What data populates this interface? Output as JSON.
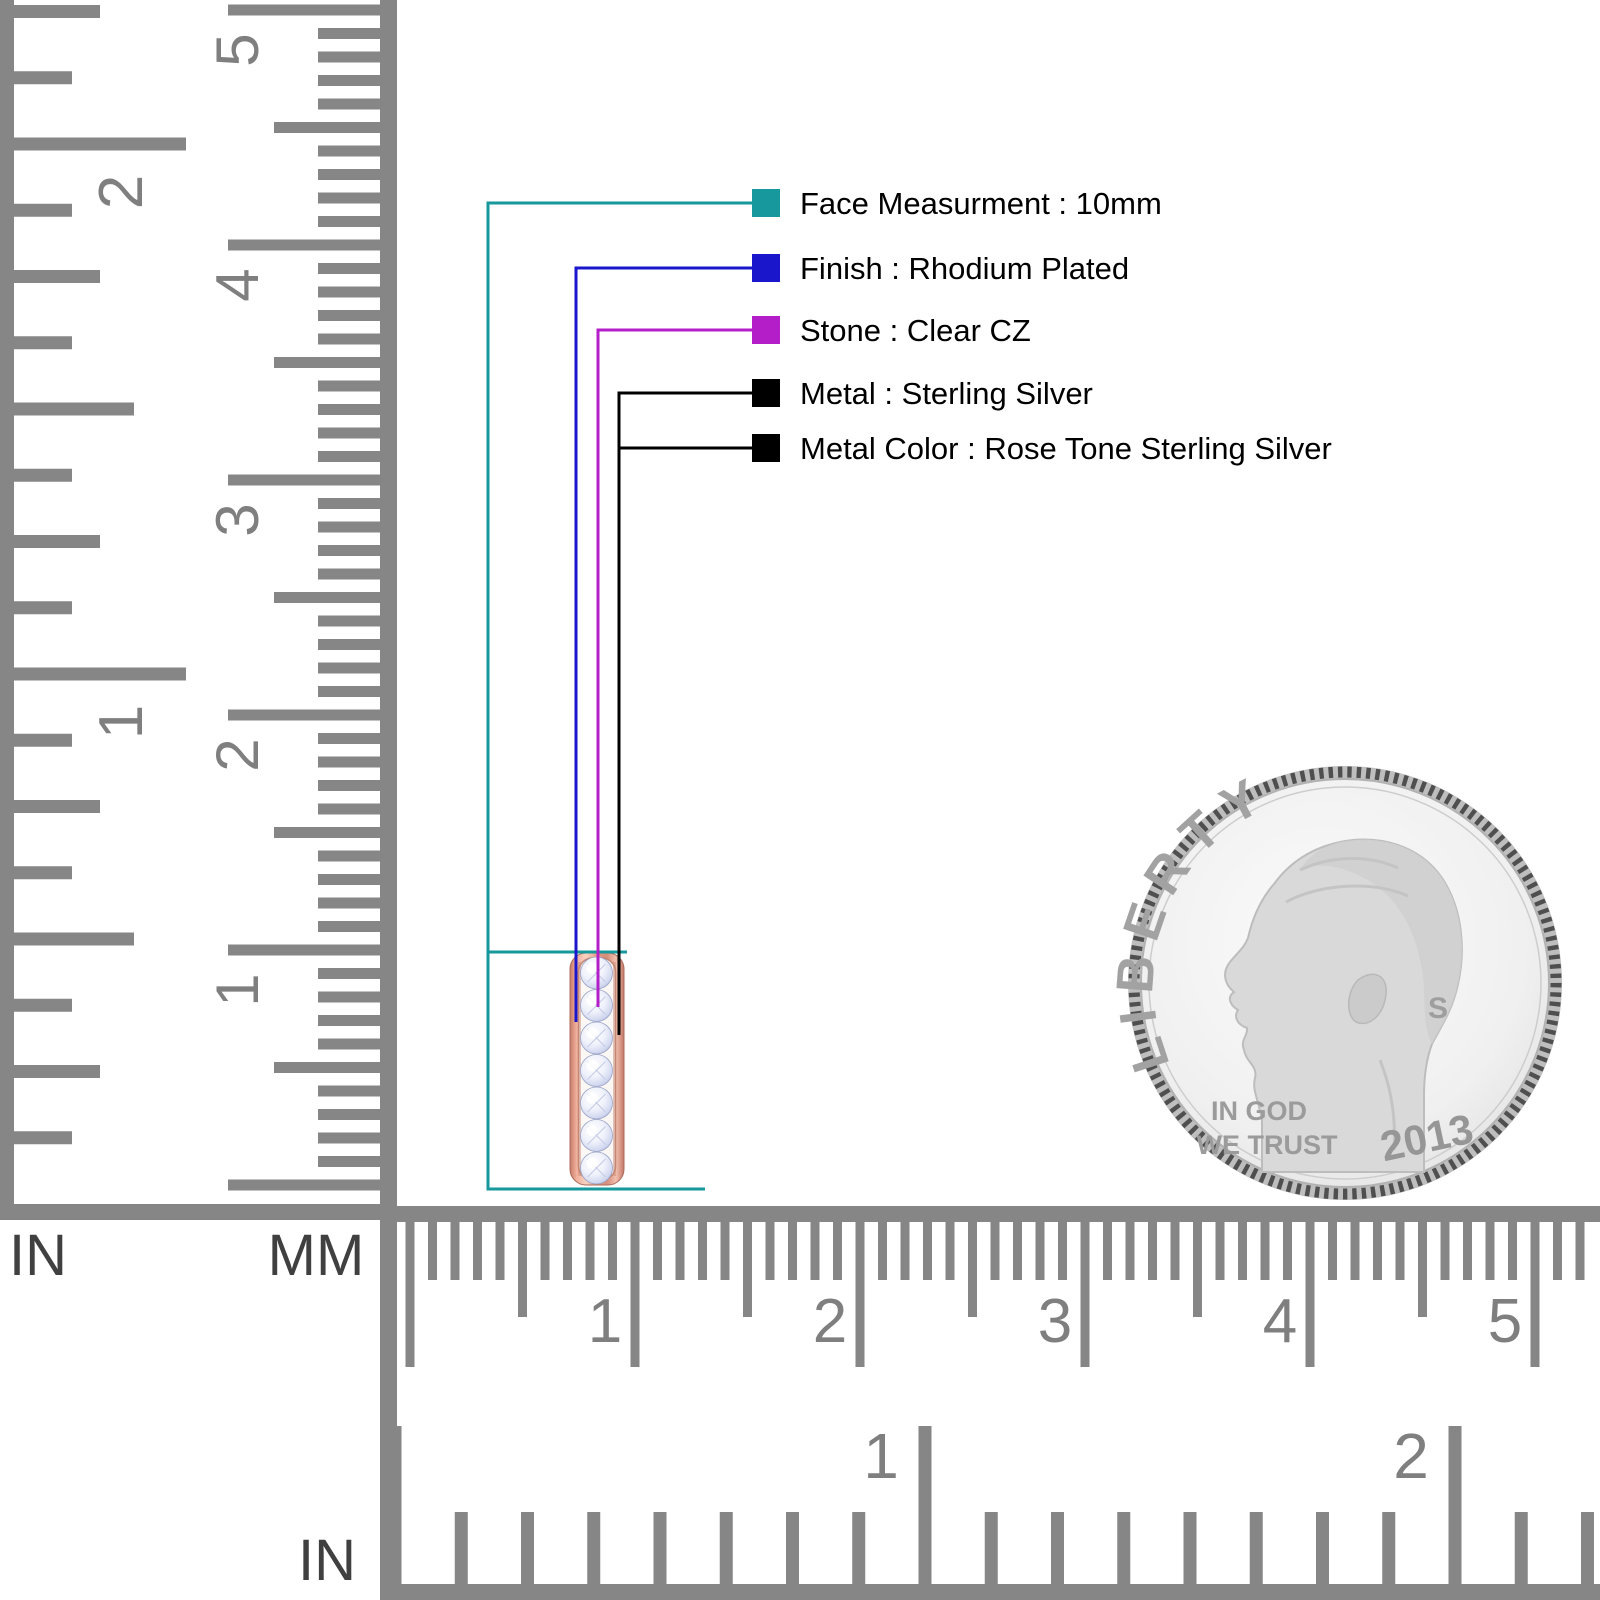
{
  "callouts": [
    {
      "id": "face-measurement",
      "label": "Face Measurment : 10mm",
      "color": "#16989d"
    },
    {
      "id": "finish",
      "label": "Finish : Rhodium Plated",
      "color": "#1a16cb"
    },
    {
      "id": "stone",
      "label": "Stone : Clear CZ",
      "color": "#b41ec9"
    },
    {
      "id": "metal",
      "label": "Metal : Sterling Silver",
      "color": "#000000"
    },
    {
      "id": "metal-color",
      "label": "Metal Color : Rose Tone Sterling Silver",
      "color": "#000000"
    }
  ],
  "vertical_ruler": {
    "inch_label": "IN",
    "mm_label": "MM",
    "inch_numbers": [
      "1",
      "2"
    ],
    "cm_numbers": [
      "1",
      "2",
      "3",
      "4",
      "5"
    ]
  },
  "bottom_ruler": {
    "inch_label": "IN",
    "cm_numbers": [
      "1",
      "2",
      "3",
      "4",
      "5"
    ],
    "inch_numbers": [
      "1",
      "2"
    ]
  },
  "pendant": {
    "stone_count": 7
  },
  "coin": {
    "legend": "LIBERTY",
    "motto_line1": "IN GOD",
    "motto_line2": "WE TRUST",
    "year": "2013",
    "mint_mark": "S"
  },
  "colors": {
    "ruler": "#868686",
    "ruler_numbers": "#7f7f7f",
    "ruler_labels": "#404040",
    "rose_gold": "#e69d87",
    "stone_fill": "#dfe3f5",
    "coin_face": "#eeeeee",
    "coin_text": "#9a9a9a"
  }
}
